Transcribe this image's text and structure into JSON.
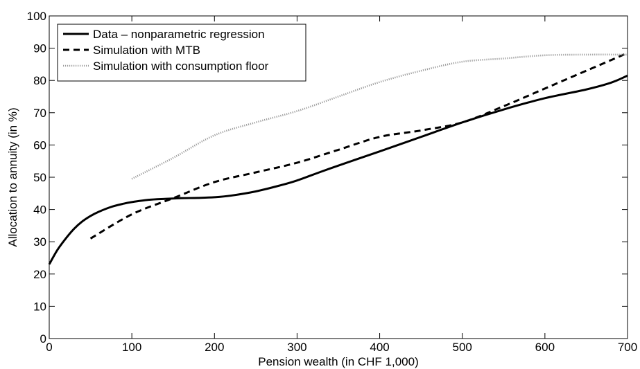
{
  "chart_data": {
    "type": "line",
    "xlabel": "Pension wealth (in CHF 1,000)",
    "ylabel": "Allocation to annuity (in %)",
    "xlim": [
      0,
      700
    ],
    "ylim": [
      0,
      100
    ],
    "xticks": [
      0,
      100,
      200,
      300,
      400,
      500,
      600,
      700
    ],
    "yticks": [
      0,
      10,
      20,
      30,
      40,
      50,
      60,
      70,
      80,
      90,
      100
    ],
    "grid": false,
    "legend_position": "top-left",
    "series": [
      {
        "name": "Data – nonparametric regression",
        "style": "solid",
        "color": "#000000",
        "x": [
          0,
          10,
          20,
          30,
          40,
          50,
          60,
          75,
          90,
          100,
          120,
          140,
          160,
          180,
          200,
          220,
          250,
          280,
          300,
          330,
          360,
          400,
          450,
          500,
          550,
          600,
          650,
          680,
          700
        ],
        "y": [
          23,
          27.5,
          31,
          34,
          36.3,
          38,
          39.3,
          40.8,
          41.8,
          42.3,
          43,
          43.3,
          43.5,
          43.6,
          43.8,
          44.3,
          45.6,
          47.5,
          49,
          51.8,
          54.5,
          58,
          62.5,
          67,
          71,
          74.5,
          77.2,
          79.3,
          81.5
        ]
      },
      {
        "name": "Simulation with MTB",
        "style": "dashed",
        "color": "#000000",
        "x": [
          50,
          100,
          150,
          200,
          250,
          300,
          350,
          400,
          450,
          500,
          550,
          600,
          650,
          700
        ],
        "y": [
          31,
          38.5,
          43.5,
          48.5,
          51.5,
          54.5,
          58.5,
          62.5,
          64.5,
          67,
          72,
          77.5,
          83,
          88.5
        ]
      },
      {
        "name": "Simulation with consumption floor",
        "style": "dotted",
        "color": "#999999",
        "x": [
          100,
          150,
          200,
          250,
          300,
          350,
          400,
          450,
          500,
          550,
          600,
          650,
          700
        ],
        "y": [
          49.5,
          56,
          63,
          67,
          70.5,
          75,
          79.5,
          83,
          85.8,
          86.8,
          87.8,
          88,
          88
        ]
      }
    ]
  }
}
